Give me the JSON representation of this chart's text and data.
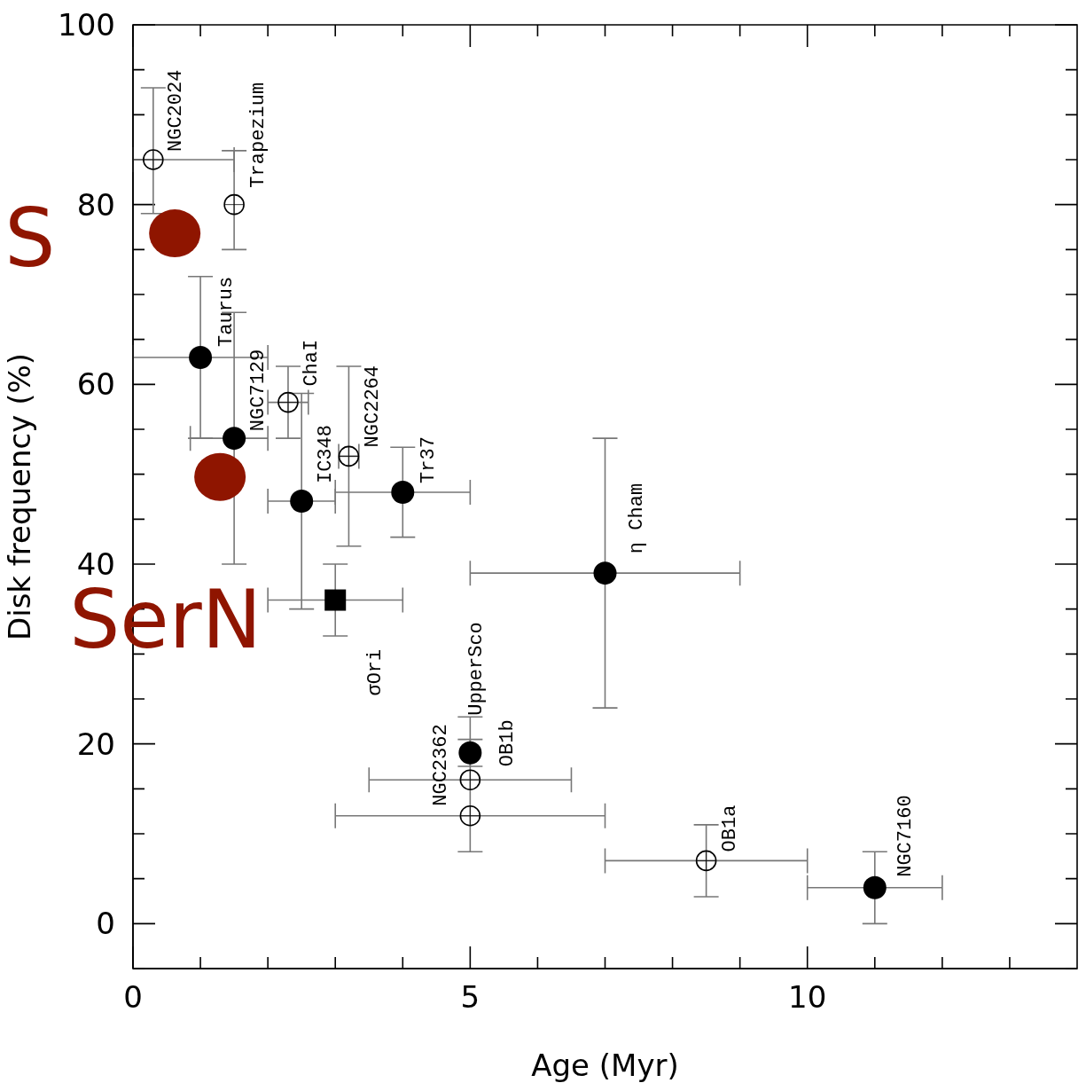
{
  "chart_data": {
    "type": "scatter",
    "xlabel": "Age (Myr)",
    "ylabel": "Disk frequency (%)",
    "xlim": [
      0,
      14
    ],
    "ylim": [
      -5,
      100
    ],
    "xticks": [
      0,
      {
        "value": 1,
        "label": null
      },
      {
        "value": 2,
        "label": null
      },
      {
        "value": 3,
        "label": null
      },
      {
        "value": 4,
        "label": null
      },
      5,
      {
        "value": 6,
        "label": null
      },
      {
        "value": 7,
        "label": null
      },
      {
        "value": 8,
        "label": null
      },
      {
        "value": 9,
        "label": null
      },
      10,
      {
        "value": 11,
        "label": null
      },
      {
        "value": 12,
        "label": null
      },
      {
        "value": 13,
        "label": null
      }
    ],
    "yticks": [
      {
        "value": -5,
        "label": null
      },
      0,
      {
        "value": 5,
        "label": null
      },
      {
        "value": 10,
        "label": null
      },
      {
        "value": 15,
        "label": null
      },
      20,
      {
        "value": 25,
        "label": null
      },
      {
        "value": 30,
        "label": null
      },
      {
        "value": 35,
        "label": null
      },
      40,
      {
        "value": 45,
        "label": null
      },
      {
        "value": 50,
        "label": null
      },
      {
        "value": 55,
        "label": null
      },
      60,
      {
        "value": 65,
        "label": null
      },
      {
        "value": 70,
        "label": null
      },
      {
        "value": 75,
        "label": null
      },
      80,
      {
        "value": 85,
        "label": null
      },
      {
        "value": 90,
        "label": null
      },
      {
        "value": 95,
        "label": null
      },
      100
    ],
    "grid": false,
    "series": [
      {
        "color": "#000000",
        "marker": "circle",
        "x": [
          0.3,
          1.5,
          2.3,
          3.2,
          5,
          5,
          8.5
        ],
        "values": [
          85,
          80,
          58,
          52,
          16,
          12,
          7
        ],
        "errors": [
          [
            79,
            93
          ],
          [
            75,
            86
          ],
          [
            54,
            62
          ],
          [
            42,
            62
          ],
          null,
          [
            8,
            23
          ],
          [
            3,
            11
          ]
        ],
        "xerrors": [
          [
            0,
            1.5
          ],
          null,
          [
            2.0,
            2.6
          ],
          [
            3.05,
            3.35
          ],
          [
            3.5,
            6.5
          ],
          [
            3,
            7
          ],
          [
            7,
            10
          ]
        ]
      },
      {
        "color": "#000000",
        "marker": "circle",
        "x": [
          1,
          1.5,
          2.5,
          4,
          7,
          5,
          11
        ],
        "values": [
          63,
          54,
          47,
          48,
          39,
          19,
          4
        ],
        "errors": [
          [
            54,
            72
          ],
          [
            40,
            68
          ],
          [
            35,
            59
          ],
          [
            43,
            53
          ],
          [
            24,
            54
          ],
          [
            17.5,
            20.5
          ],
          [
            0,
            8
          ]
        ],
        "xerrors": [
          [
            0,
            2
          ],
          [
            0.85,
            2
          ],
          [
            2,
            3
          ],
          [
            3,
            5
          ],
          [
            5,
            9
          ],
          null,
          [
            10,
            12
          ]
        ]
      },
      {
        "color": "#000000",
        "marker": "square",
        "x": [
          3
        ],
        "values": [
          36
        ],
        "errors": [
          [
            32,
            40
          ]
        ],
        "xerrors": [
          [
            2,
            4
          ]
        ]
      },
      {
        "color": "#8f1500",
        "marker": "circle",
        "x": [
          0.62,
          1.29
        ],
        "values": [
          76.8,
          49.7
        ]
      }
    ],
    "annotations": [
      {
        "text": "NGC2024",
        "x": 0.3,
        "y": 85
      },
      {
        "text": "Trapezium",
        "x": 1.5,
        "y": 80
      },
      {
        "text": "Taurus",
        "x": 1,
        "y": 63
      },
      {
        "text": "NGC7129",
        "x": 1.5,
        "y": 54
      },
      {
        "text": "ChaI",
        "x": 2.3,
        "y": 58
      },
      {
        "text": "IC348",
        "x": 2.5,
        "y": 47
      },
      {
        "text": "NGC2264",
        "x": 3.2,
        "y": 52
      },
      {
        "text": "Tr37",
        "x": 4,
        "y": 48
      },
      {
        "text": "σOri",
        "x": 3,
        "y": 36
      },
      {
        "text": "η Cham",
        "x": 7,
        "y": 39
      },
      {
        "text": "UpperSco",
        "x": 5,
        "y": 19
      },
      {
        "text": "OB1b",
        "x": 5,
        "y": 16
      },
      {
        "text": "NGC2362",
        "x": 5,
        "y": 12
      },
      {
        "text": "OB1a",
        "x": 8.5,
        "y": 7
      },
      {
        "text": "NGC7160",
        "x": 11,
        "y": 4
      },
      {
        "text": "S",
        "x": 0.62,
        "y": 76.8
      },
      {
        "text": "SerN",
        "x": 1.29,
        "y": 49.7
      }
    ]
  }
}
